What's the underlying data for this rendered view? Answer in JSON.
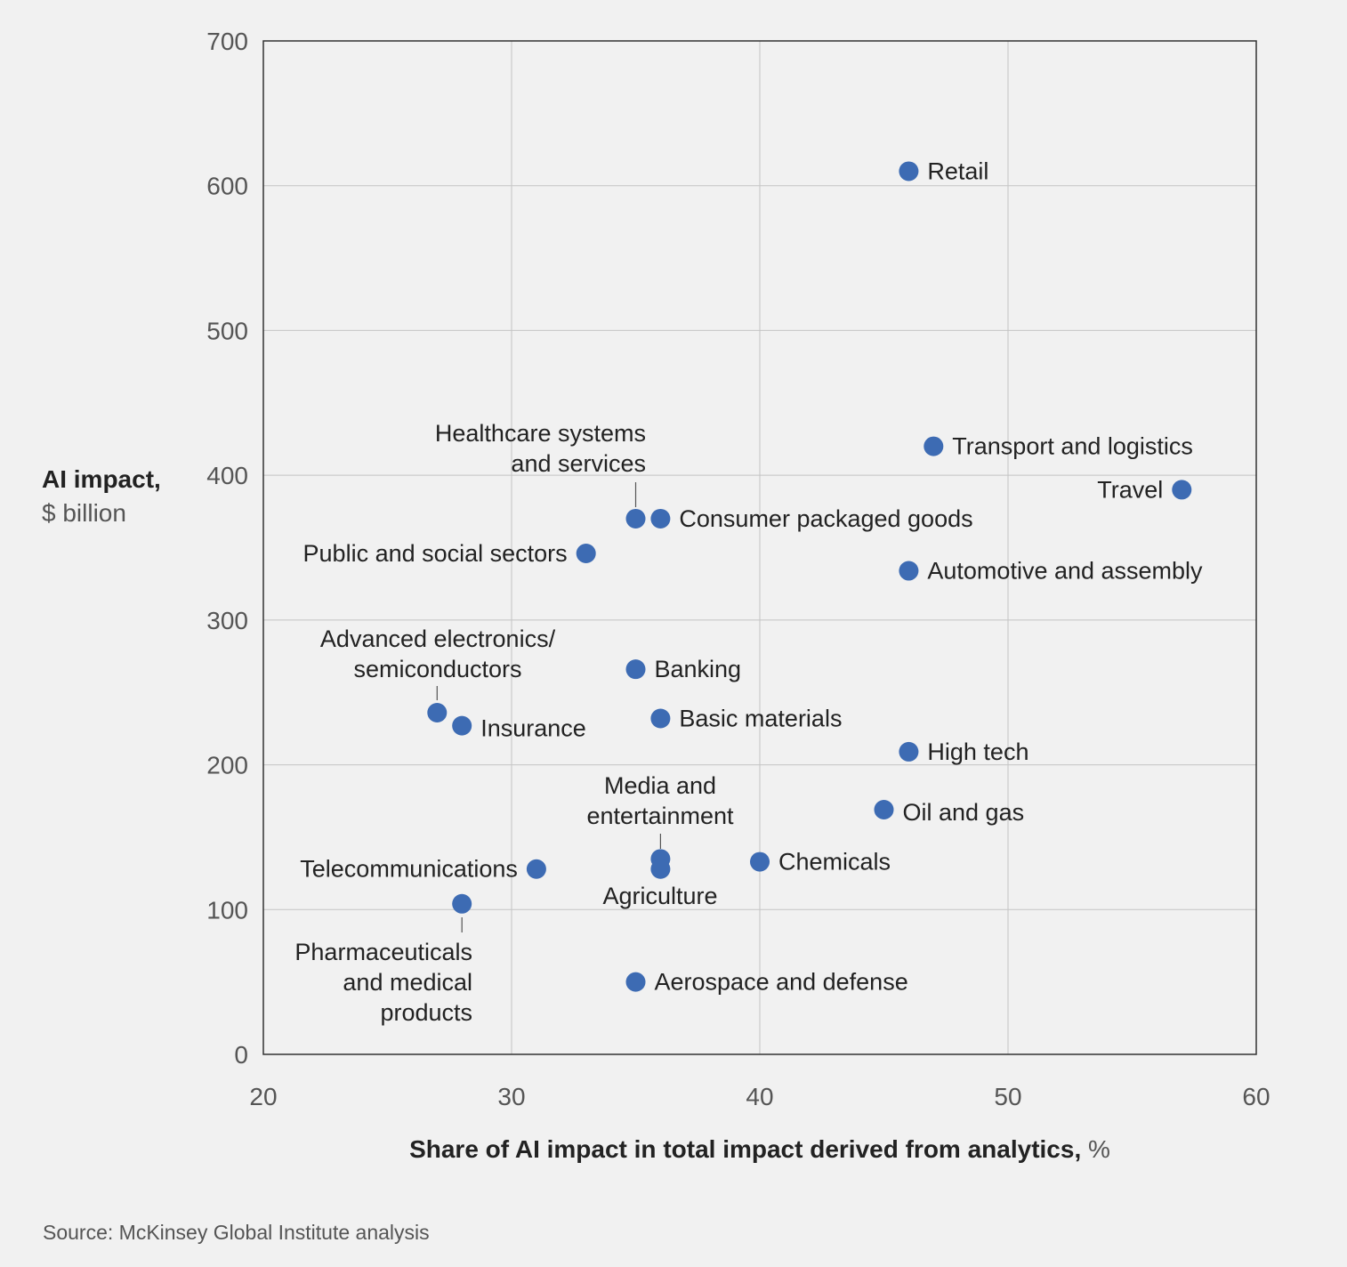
{
  "chart_data": {
    "type": "scatter",
    "ylabel": "AI impact,",
    "ylabel_unit": "$ billion",
    "xlabel": "Share of AI impact in total impact derived from analytics,",
    "xlabel_unit": "%",
    "xlim": [
      20,
      60
    ],
    "ylim": [
      0,
      700
    ],
    "x_ticks": [
      20,
      30,
      40,
      50,
      60
    ],
    "y_ticks": [
      0,
      100,
      200,
      300,
      400,
      500,
      600,
      700
    ],
    "grid": true,
    "point_color": "#3d6bb3",
    "points": [
      {
        "label": "Retail",
        "x": 46,
        "y": 610
      },
      {
        "label": "Transport and logistics",
        "x": 47,
        "y": 420
      },
      {
        "label": "Travel",
        "x": 57,
        "y": 390
      },
      {
        "label": "Healthcare systems and services",
        "x": 35,
        "y": 370
      },
      {
        "label": "Consumer packaged goods",
        "x": 36,
        "y": 370
      },
      {
        "label": "Public and social sectors",
        "x": 33,
        "y": 346
      },
      {
        "label": "Automotive and assembly",
        "x": 46,
        "y": 334
      },
      {
        "label": "Banking",
        "x": 35,
        "y": 266
      },
      {
        "label": "Advanced electronics/ semiconductors",
        "x": 27,
        "y": 236
      },
      {
        "label": "Insurance",
        "x": 28,
        "y": 227
      },
      {
        "label": "Basic materials",
        "x": 36,
        "y": 232
      },
      {
        "label": "High tech",
        "x": 46,
        "y": 209
      },
      {
        "label": "Oil and gas",
        "x": 45,
        "y": 169
      },
      {
        "label": "Media and entertainment",
        "x": 36,
        "y": 135
      },
      {
        "label": "Agriculture",
        "x": 36,
        "y": 128
      },
      {
        "label": "Chemicals",
        "x": 40,
        "y": 133
      },
      {
        "label": "Telecommunications",
        "x": 31,
        "y": 128
      },
      {
        "label": "Pharmaceuticals and medical products",
        "x": 28,
        "y": 104
      },
      {
        "label": "Aerospace and defense",
        "x": 35,
        "y": 50
      }
    ]
  },
  "source": "Source: McKinsey Global Institute analysis"
}
